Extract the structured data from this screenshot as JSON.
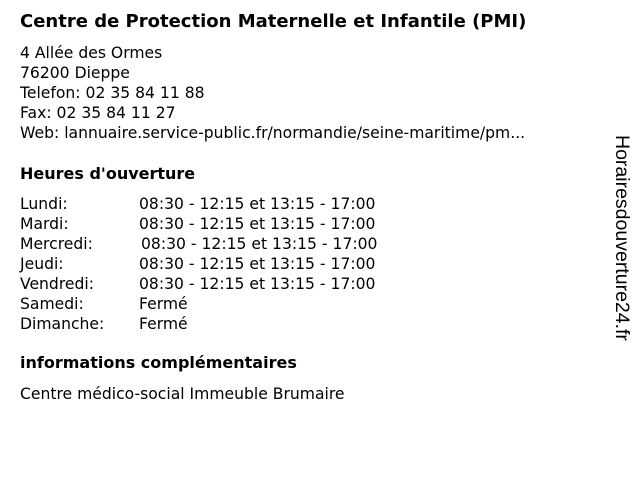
{
  "title": "Centre de Protection Maternelle et Infantile (PMI)",
  "address": {
    "street": "4 Allée des Ormes",
    "city": "76200 Dieppe",
    "phone": "Telefon: 02 35 84 11 88",
    "fax": "Fax: 02 35 84 11 27",
    "web": "Web: lannuaire.service-public.fr/normandie/seine-maritime/pm..."
  },
  "hours": {
    "heading": "Heures d'ouverture",
    "rows": [
      {
        "day": "Lundi:",
        "time": "08:30 - 12:15 et 13:15 - 17:00"
      },
      {
        "day": "Mardi:",
        "time": "08:30 - 12:15 et 13:15 - 17:00"
      },
      {
        "day": "Mercredi:",
        "time": "08:30 - 12:15 et 13:15 - 17:00"
      },
      {
        "day": "Jeudi:",
        "time": "08:30 - 12:15 et 13:15 - 17:00"
      },
      {
        "day": "Vendredi:",
        "time": "08:30 - 12:15 et 13:15 - 17:00"
      },
      {
        "day": "Samedi:",
        "time": "Fermé"
      },
      {
        "day": "Dimanche:",
        "time": "Fermé"
      }
    ]
  },
  "info": {
    "heading": "informations complémentaires",
    "text": "Centre médico-social Immeuble Brumaire"
  },
  "watermark": "Horairesdouverture24.fr"
}
